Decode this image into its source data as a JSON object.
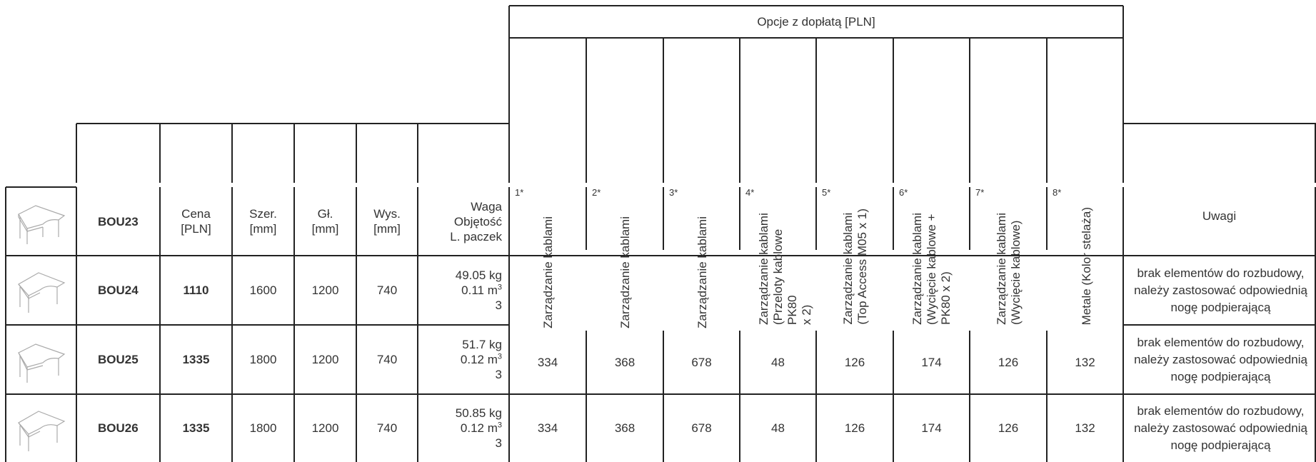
{
  "options_header": "Opcje z dopłatą [PLN]",
  "columns": {
    "price": "Cena\n[PLN]",
    "width": "Szer.\n[mm]",
    "depth": "Gł.\n[mm]",
    "height": "Wys.\n[mm]",
    "weight": "Waga",
    "volume": "Objętość",
    "packages": "L. paczek",
    "notes": "Uwagi"
  },
  "options": [
    {
      "num": "1*",
      "label": "Zarządzanie kablami"
    },
    {
      "num": "2*",
      "label": "Zarządzanie kablami"
    },
    {
      "num": "3*",
      "label": "Zarządzanie kablami"
    },
    {
      "num": "4*",
      "label": "Zarządzanie kablami\n(Przeloty kablowe PK80\nx 2)"
    },
    {
      "num": "5*",
      "label": "Zarządzanie kablami\n(Top Access M05 x 1)"
    },
    {
      "num": "6*",
      "label": "Zarządzanie kablami\n(Wycięcie kablowe +\nPK80 x 2)"
    },
    {
      "num": "7*",
      "label": "Zarządzanie kablami\n(Wycięcie kablowe)"
    },
    {
      "num": "8*",
      "label": "Metale (Kolor stelaża)"
    }
  ],
  "rows": [
    {
      "code": "BOU23"
    },
    {
      "code": "BOU24",
      "price": "1110",
      "width": "1600",
      "depth": "1200",
      "height": "740",
      "weight": "49.05 kg",
      "volume": "0.11 m",
      "packages": "3",
      "note": "brak elementów do rozbudowy, należy zastosować odpowiednią nogę podpierającą"
    },
    {
      "code": "BOU25",
      "price": "1335",
      "width": "1800",
      "depth": "1200",
      "height": "740",
      "weight": "51.7 kg",
      "volume": "0.12 m",
      "packages": "3",
      "opts": [
        "334",
        "368",
        "678",
        "48",
        "126",
        "174",
        "126",
        "132"
      ],
      "note": "brak elementów do rozbudowy, należy zastosować odpowiednią nogę podpierającą"
    },
    {
      "code": "BOU26",
      "price": "1335",
      "width": "1800",
      "depth": "1200",
      "height": "740",
      "weight": "50.85 kg",
      "volume": "0.12 m",
      "packages": "3",
      "opts": [
        "334",
        "368",
        "678",
        "48",
        "126",
        "174",
        "126",
        "132"
      ],
      "note": "brak elementów do rozbudowy, należy zastosować odpowiednią nogę podpierającą"
    }
  ],
  "volume_unit_exp": "3"
}
